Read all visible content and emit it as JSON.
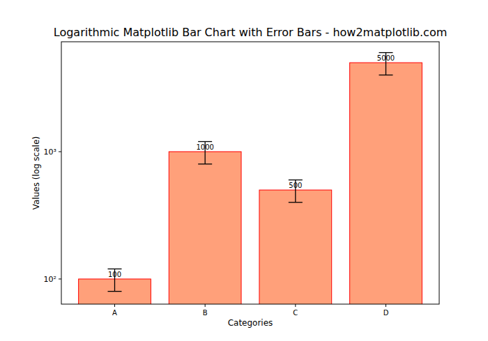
{
  "chart_data": {
    "type": "bar",
    "title": "Logarithmic Matplotlib Bar Chart with Error Bars - how2matplotlib.com",
    "xlabel": "Categories",
    "ylabel": "Values (log scale)",
    "categories": [
      "A",
      "B",
      "C",
      "D"
    ],
    "values": [
      100,
      1000,
      500,
      5000
    ],
    "errors": [
      20,
      200,
      100,
      1000
    ],
    "color": "#ffa07a",
    "log": "y",
    "ylim": [
      63.5,
      7300
    ],
    "yticks": [
      {
        "value": 100,
        "label": "10²"
      },
      {
        "value": 1000,
        "label": "10³"
      }
    ],
    "data_labels": true,
    "grid": false
  }
}
